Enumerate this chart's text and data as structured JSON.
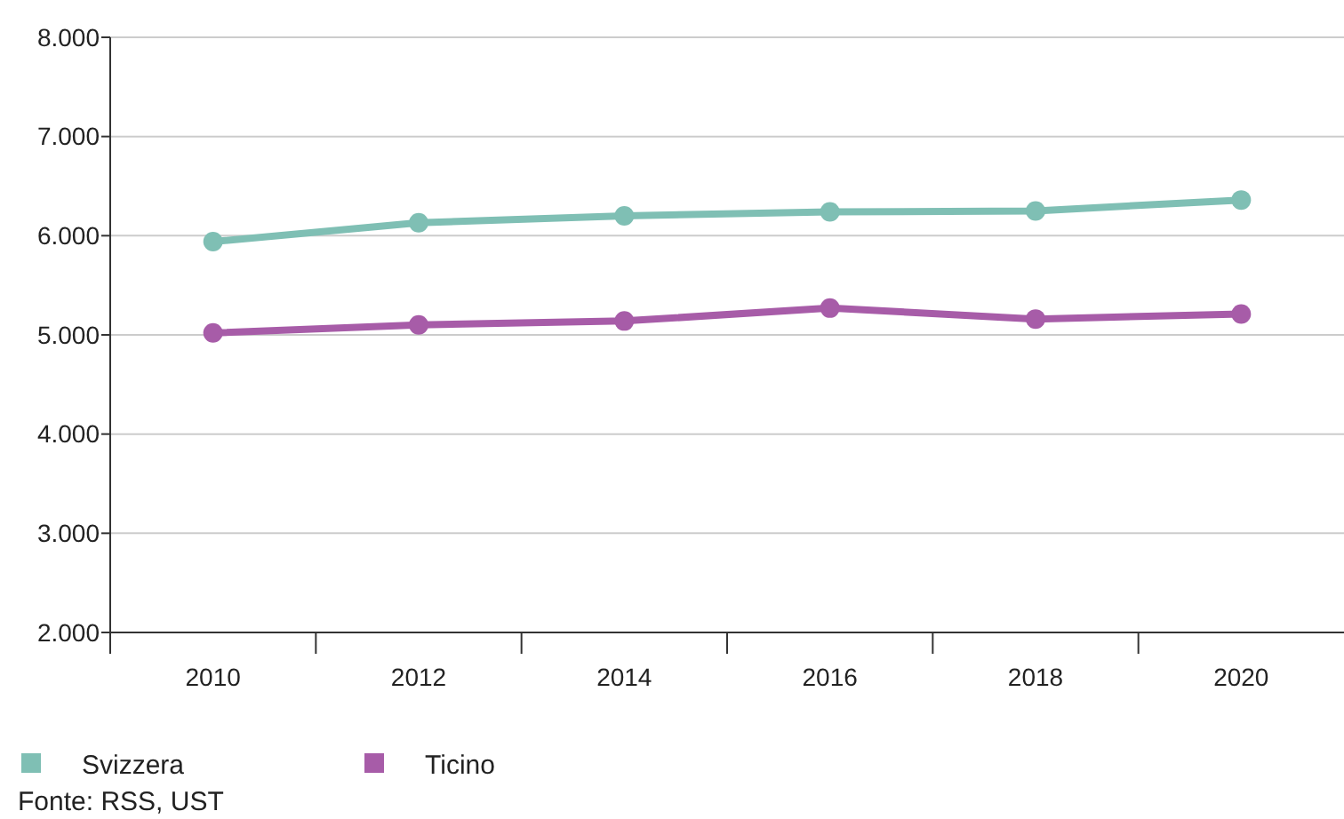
{
  "chart_data": {
    "type": "line",
    "categories": [
      "2010",
      "2012",
      "2014",
      "2016",
      "2018",
      "2020"
    ],
    "series": [
      {
        "name": "Svizzera",
        "color": "#7fbfb4",
        "values": [
          5940,
          6130,
          6200,
          6240,
          6250,
          6360
        ]
      },
      {
        "name": "Ticino",
        "color": "#a75ca8",
        "values": [
          5020,
          5100,
          5140,
          5270,
          5160,
          5210
        ]
      }
    ],
    "ylim": [
      2000,
      8000
    ],
    "yticks": [
      {
        "value": 2000,
        "label": "2.000"
      },
      {
        "value": 3000,
        "label": "3.000"
      },
      {
        "value": 4000,
        "label": "4.000"
      },
      {
        "value": 5000,
        "label": "5.000"
      },
      {
        "value": 6000,
        "label": "6.000"
      },
      {
        "value": 7000,
        "label": "7.000"
      },
      {
        "value": 8000,
        "label": "8.000"
      }
    ],
    "grid": "y",
    "legend": "bottom left",
    "marker": "circle",
    "line_style": "solid",
    "annotations": [
      "Fonte: RSS, UST"
    ]
  }
}
